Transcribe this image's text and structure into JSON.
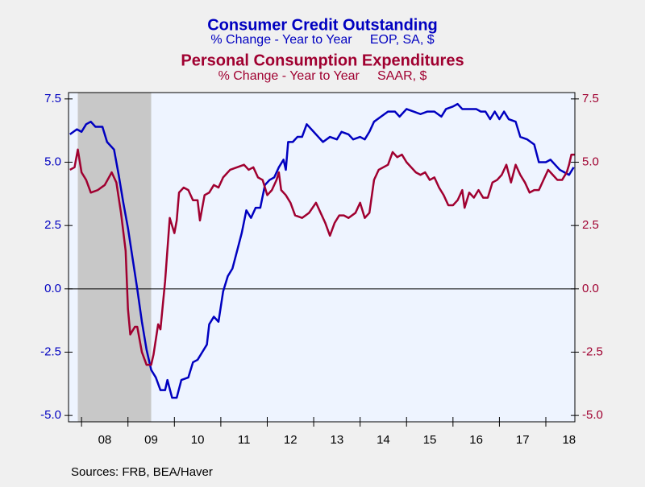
{
  "chart_data": {
    "type": "line",
    "source": "Sources:  FRB, BEA/Haver",
    "xlim": [
      2007.72,
      2018.625
    ],
    "xticks": [
      {
        "value": 2008.5,
        "label": "08"
      },
      {
        "value": 2009.5,
        "label": "09"
      },
      {
        "value": 2010.5,
        "label": "10"
      },
      {
        "value": 2011.5,
        "label": "11"
      },
      {
        "value": 2012.5,
        "label": "12"
      },
      {
        "value": 2013.5,
        "label": "13"
      },
      {
        "value": 2014.5,
        "label": "14"
      },
      {
        "value": 2015.5,
        "label": "15"
      },
      {
        "value": 2016.5,
        "label": "16"
      },
      {
        "value": 2017.5,
        "label": "17"
      },
      {
        "value": 2018.5,
        "label": "18"
      }
    ],
    "minor_xticks": [
      2008,
      2009,
      2010,
      2011,
      2012,
      2013,
      2014,
      2015,
      2016,
      2017,
      2018
    ],
    "ylim": [
      -5.25,
      7.75
    ],
    "yticks": [
      {
        "value": 7.5,
        "label": "7.5"
      },
      {
        "value": 5,
        "label": "5.0"
      },
      2.5,
      {
        "value": 0,
        "label": "0.0"
      },
      -2.5,
      {
        "value": -5,
        "label": "-5.0"
      }
    ],
    "y2lim": [
      -5.25,
      7.75
    ],
    "y2ticks": [
      {
        "value": 7.5,
        "label": "7.5"
      },
      {
        "value": 5,
        "label": "5.0"
      },
      2.5,
      {
        "value": 0,
        "label": "0.0"
      },
      -2.5,
      {
        "value": -5,
        "label": "-5.0"
      }
    ],
    "recession": [
      2007.92,
      2009.5
    ],
    "zero_line": true,
    "series": [
      {
        "name": "Consumer Credit Outstanding",
        "subtitle": "% Change - Year to Year     EOP, SA, $",
        "color": "#0000c0",
        "x": [
          2007.75,
          2007.9,
          2008.0,
          2008.1,
          2008.2,
          2008.3,
          2008.45,
          2008.55,
          2008.7,
          2008.8,
          2008.9,
          2009.0,
          2009.1,
          2009.2,
          2009.3,
          2009.4,
          2009.5,
          2009.6,
          2009.7,
          2009.8,
          2009.85,
          2009.95,
          2010.05,
          2010.15,
          2010.3,
          2010.4,
          2010.5,
          2010.6,
          2010.7,
          2010.75,
          2010.85,
          2010.95,
          2011.05,
          2011.15,
          2011.25,
          2011.35,
          2011.45,
          2011.55,
          2011.65,
          2011.75,
          2011.85,
          2011.95,
          2012.05,
          2012.15,
          2012.25,
          2012.35,
          2012.4,
          2012.45,
          2012.55,
          2012.65,
          2012.75,
          2012.85,
          2013.0,
          2013.1,
          2013.2,
          2013.35,
          2013.5,
          2013.6,
          2013.75,
          2013.85,
          2014.0,
          2014.1,
          2014.2,
          2014.3,
          2014.45,
          2014.6,
          2014.75,
          2014.85,
          2015.0,
          2015.15,
          2015.3,
          2015.45,
          2015.6,
          2015.75,
          2015.85,
          2016.0,
          2016.1,
          2016.2,
          2016.35,
          2016.5,
          2016.6,
          2016.7,
          2016.8,
          2016.9,
          2017.0,
          2017.1,
          2017.2,
          2017.35,
          2017.45,
          2017.6,
          2017.75,
          2017.85,
          2018.0,
          2018.1,
          2018.2,
          2018.3,
          2018.4,
          2018.5,
          2018.6
        ],
        "values": [
          6.1,
          6.3,
          6.2,
          6.5,
          6.6,
          6.4,
          6.4,
          5.8,
          5.5,
          4.5,
          3.4,
          2.4,
          1.2,
          0.0,
          -1.3,
          -2.4,
          -3.2,
          -3.5,
          -4.0,
          -4.0,
          -3.6,
          -4.3,
          -4.3,
          -3.6,
          -3.5,
          -2.9,
          -2.8,
          -2.5,
          -2.2,
          -1.4,
          -1.1,
          -1.3,
          -0.1,
          0.5,
          0.8,
          1.5,
          2.2,
          3.1,
          2.8,
          3.2,
          3.2,
          4.1,
          4.3,
          4.4,
          4.8,
          5.1,
          4.7,
          5.8,
          5.8,
          6.0,
          6.0,
          6.5,
          6.2,
          6.0,
          5.8,
          6.0,
          5.9,
          6.2,
          6.1,
          5.9,
          6.0,
          5.9,
          6.2,
          6.6,
          6.8,
          7.0,
          7.0,
          6.8,
          7.1,
          7.0,
          6.9,
          7.0,
          7.0,
          6.8,
          7.1,
          7.2,
          7.3,
          7.1,
          7.1,
          7.1,
          7.0,
          7.0,
          6.7,
          7.0,
          6.7,
          7.0,
          6.7,
          6.6,
          6.0,
          5.9,
          5.7,
          5.0,
          5.0,
          5.1,
          4.9,
          4.7,
          4.6,
          4.5,
          4.8
        ]
      },
      {
        "name": "Personal Consumption Expenditures",
        "subtitle": "% Change - Year to Year     SAAR, $",
        "color": "#a00030",
        "axis": "y2",
        "x": [
          2007.75,
          2007.85,
          2007.92,
          2008.0,
          2008.1,
          2008.2,
          2008.35,
          2008.5,
          2008.65,
          2008.75,
          2008.85,
          2008.95,
          2009.0,
          2009.05,
          2009.15,
          2009.2,
          2009.3,
          2009.4,
          2009.5,
          2009.55,
          2009.65,
          2009.7,
          2009.8,
          2009.9,
          2010.0,
          2010.05,
          2010.1,
          2010.2,
          2010.3,
          2010.4,
          2010.5,
          2010.55,
          2010.65,
          2010.75,
          2010.85,
          2010.95,
          2011.05,
          2011.2,
          2011.35,
          2011.5,
          2011.6,
          2011.7,
          2011.8,
          2011.9,
          2012.0,
          2012.1,
          2012.2,
          2012.25,
          2012.3,
          2012.4,
          2012.5,
          2012.6,
          2012.75,
          2012.9,
          2013.05,
          2013.15,
          2013.25,
          2013.35,
          2013.45,
          2013.55,
          2013.65,
          2013.75,
          2013.9,
          2014.0,
          2014.1,
          2014.2,
          2014.3,
          2014.4,
          2014.5,
          2014.6,
          2014.7,
          2014.8,
          2014.9,
          2015.0,
          2015.1,
          2015.2,
          2015.3,
          2015.4,
          2015.5,
          2015.6,
          2015.7,
          2015.8,
          2015.9,
          2016.0,
          2016.1,
          2016.2,
          2016.25,
          2016.35,
          2016.45,
          2016.55,
          2016.65,
          2016.75,
          2016.85,
          2016.95,
          2017.05,
          2017.15,
          2017.25,
          2017.35,
          2017.45,
          2017.55,
          2017.65,
          2017.75,
          2017.85,
          2017.95,
          2018.05,
          2018.15,
          2018.25,
          2018.35,
          2018.45,
          2018.5,
          2018.55,
          2018.62
        ],
        "values": [
          4.7,
          4.8,
          5.5,
          4.6,
          4.3,
          3.8,
          3.9,
          4.1,
          4.6,
          4.2,
          3.0,
          1.5,
          -0.8,
          -1.8,
          -1.5,
          -1.5,
          -2.5,
          -3.0,
          -3.0,
          -2.6,
          -1.4,
          -1.6,
          0.3,
          2.8,
          2.2,
          2.7,
          3.8,
          4.0,
          3.9,
          3.5,
          3.5,
          2.7,
          3.7,
          3.8,
          4.1,
          4.0,
          4.4,
          4.7,
          4.8,
          4.9,
          4.7,
          4.8,
          4.4,
          4.3,
          3.7,
          3.9,
          4.3,
          4.6,
          3.9,
          3.7,
          3.4,
          2.9,
          2.8,
          3.0,
          3.4,
          3.0,
          2.6,
          2.1,
          2.6,
          2.9,
          2.9,
          2.8,
          3.0,
          3.4,
          2.8,
          3.0,
          4.3,
          4.7,
          4.8,
          4.9,
          5.4,
          5.2,
          5.3,
          5.0,
          4.8,
          4.6,
          4.5,
          4.6,
          4.3,
          4.4,
          4.0,
          3.7,
          3.3,
          3.3,
          3.5,
          3.9,
          3.2,
          3.8,
          3.6,
          3.9,
          3.6,
          3.6,
          4.2,
          4.3,
          4.5,
          4.9,
          4.2,
          4.9,
          4.5,
          4.2,
          3.8,
          3.9,
          3.9,
          4.3,
          4.7,
          4.5,
          4.3,
          4.3,
          4.6,
          4.9,
          5.3,
          5.3
        ]
      }
    ]
  }
}
